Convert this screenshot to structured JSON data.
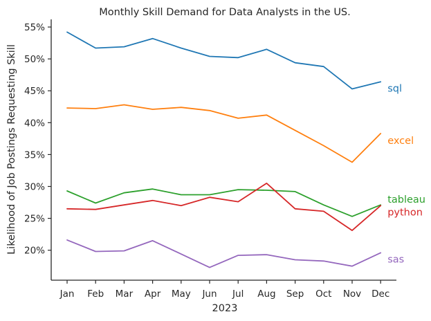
{
  "chart_data": {
    "type": "line",
    "title": "Monthly Skill Demand for Data Analysts in the US.",
    "xlabel": "2023",
    "ylabel": "Likelihood of Job Postings Requesting Skill",
    "categories": [
      "Jan",
      "Feb",
      "Mar",
      "Apr",
      "May",
      "Jun",
      "Jul",
      "Aug",
      "Sep",
      "Oct",
      "Nov",
      "Dec"
    ],
    "ylim": [
      15.3,
      56.2
    ],
    "yticks": [
      20,
      25,
      30,
      35,
      40,
      45,
      50,
      55
    ],
    "ytick_labels": [
      "20%",
      "25%",
      "30%",
      "35%",
      "40%",
      "45%",
      "50%",
      "55%"
    ],
    "grid": false,
    "legend": "none",
    "series_labels_placement": "right end of each line",
    "series": [
      {
        "name": "sql",
        "color": "#1f77b4",
        "label_value": 45.4,
        "values": [
          54.2,
          51.7,
          51.9,
          53.2,
          51.7,
          50.4,
          50.2,
          51.5,
          49.4,
          48.8,
          45.3,
          46.4
        ]
      },
      {
        "name": "excel",
        "color": "#ff7f0e",
        "label_value": 37.2,
        "values": [
          42.3,
          42.2,
          42.8,
          42.1,
          42.4,
          41.9,
          40.7,
          41.2,
          38.8,
          36.4,
          33.8,
          38.3
        ]
      },
      {
        "name": "tableau",
        "color": "#2ca02c",
        "label_value": 28.0,
        "values": [
          29.3,
          27.4,
          29.0,
          29.6,
          28.7,
          28.7,
          29.5,
          29.4,
          29.2,
          27.1,
          25.3,
          27.1
        ]
      },
      {
        "name": "python",
        "color": "#d62728",
        "label_value": 26.0,
        "values": [
          26.5,
          26.4,
          27.1,
          27.8,
          27.0,
          28.3,
          27.6,
          30.5,
          26.5,
          26.1,
          23.1,
          27.0
        ]
      },
      {
        "name": "sas",
        "color": "#9467bd",
        "label_value": 18.6,
        "values": [
          21.6,
          19.8,
          19.9,
          21.5,
          19.4,
          17.3,
          19.2,
          19.3,
          18.5,
          18.3,
          17.5,
          19.6
        ]
      }
    ]
  }
}
